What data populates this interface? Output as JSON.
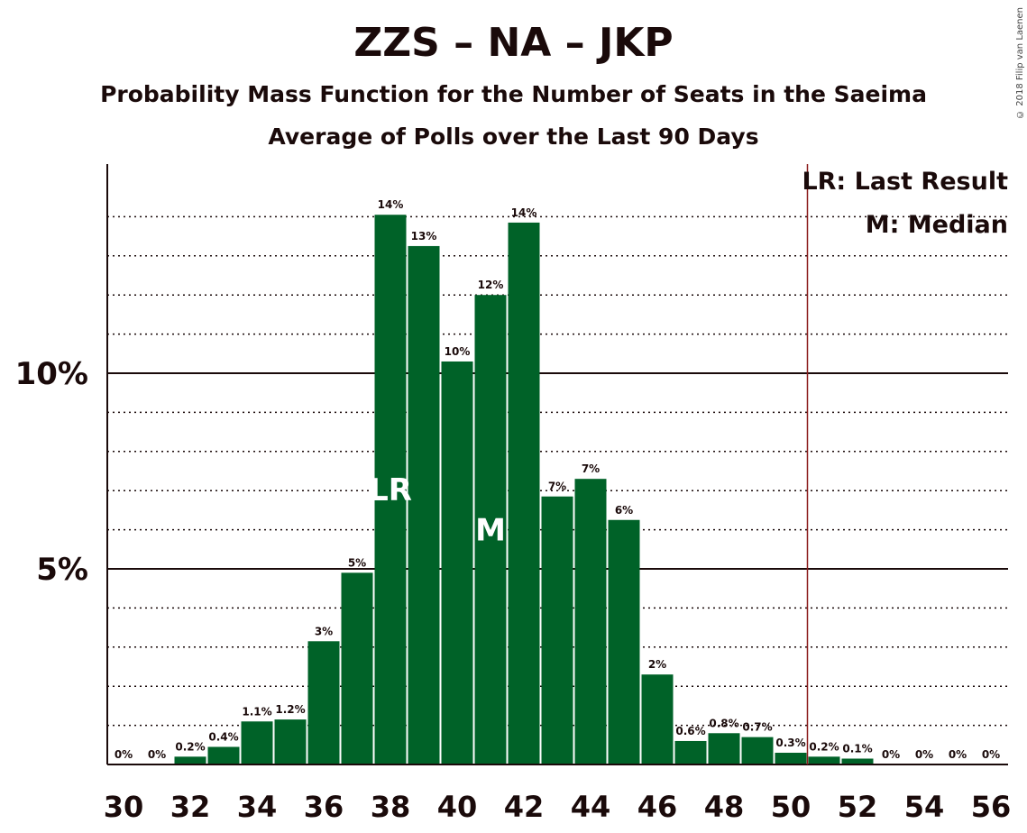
{
  "header": {
    "title": "ZZS – NA – JKP",
    "subtitle1": "Probability Mass Function for the Number of Seats in the Saeima",
    "subtitle2": "Average of Polls over the Last 90 Days",
    "copyright": "© 2018 Filip van Laenen"
  },
  "legend": {
    "lr": "LR: Last Result",
    "median": "M: Median"
  },
  "colors": {
    "bar": "#006228",
    "last_result_line": "#8b1a1a",
    "text": "#1a0a0a"
  },
  "chart_data": {
    "type": "bar",
    "title": "ZZS – NA – JKP",
    "xlabel": "",
    "ylabel": "",
    "x": [
      30,
      31,
      32,
      33,
      34,
      35,
      36,
      37,
      38,
      39,
      40,
      41,
      42,
      43,
      44,
      45,
      46,
      47,
      48,
      49,
      50,
      51,
      52,
      53,
      54,
      55,
      56
    ],
    "values": [
      0,
      0,
      0.2,
      0.45,
      1.1,
      1.15,
      3.15,
      4.9,
      14.05,
      13.25,
      10.3,
      12.0,
      13.85,
      6.85,
      7.3,
      6.25,
      2.3,
      0.6,
      0.8,
      0.7,
      0.3,
      0.2,
      0.15,
      0,
      0,
      0,
      0
    ],
    "labels": [
      "0%",
      "0%",
      "0.2%",
      "0.4%",
      "1.1%",
      "1.2%",
      "3%",
      "5%",
      "14%",
      "13%",
      "10%",
      "12%",
      "14%",
      "7%",
      "7%",
      "6%",
      "2%",
      "0.6%",
      "0.8%",
      "0.7%",
      "0.3%",
      "0.2%",
      "0.1%",
      "0%",
      "0%",
      "0%",
      "0%"
    ],
    "ylim": [
      0,
      15.3
    ],
    "y_ticks": [
      {
        "value": 5,
        "label": "5%"
      },
      {
        "value": 10,
        "label": "10%"
      }
    ],
    "x_ticks": [
      30,
      32,
      34,
      36,
      38,
      40,
      42,
      44,
      46,
      48,
      50,
      52,
      54,
      56
    ],
    "minor_gridlines": [
      1,
      2,
      3,
      4,
      6,
      7,
      8,
      9,
      11,
      12,
      13,
      14
    ],
    "last_result": 38,
    "last_result_marker": "LR",
    "median": 41,
    "median_marker": "M",
    "majority_line": 50.5,
    "legend_position": "top-right"
  }
}
